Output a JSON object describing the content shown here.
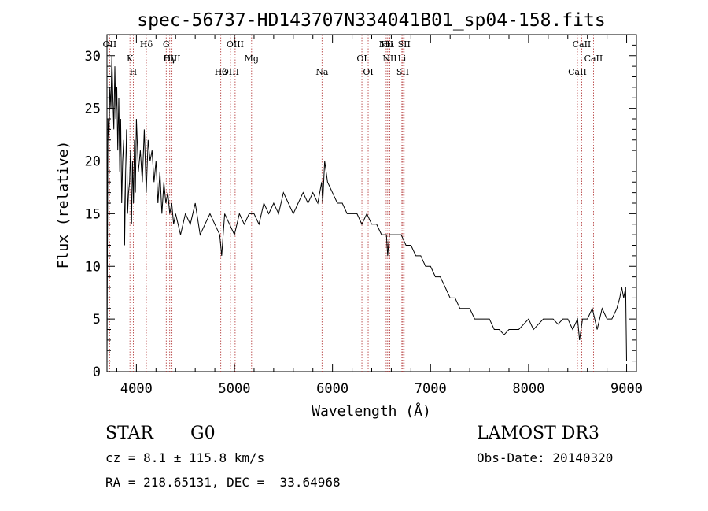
{
  "chart_data": {
    "type": "line",
    "title": "spec-56737-HD143707N334041B01_sp04-158.fits",
    "xlabel": "Wavelength (Å)",
    "ylabel": "Flux (relative)",
    "xlim": [
      3700,
      9100
    ],
    "ylim": [
      0,
      32
    ],
    "xticks": [
      4000,
      5000,
      6000,
      7000,
      8000,
      9000
    ],
    "yticks": [
      0,
      5,
      10,
      15,
      20,
      25,
      30
    ],
    "grid": false,
    "series": [
      {
        "x": [
          3700,
          3710,
          3720,
          3730,
          3740,
          3750,
          3760,
          3770,
          3780,
          3790,
          3800,
          3810,
          3820,
          3830,
          3840,
          3850,
          3860,
          3870,
          3880,
          3890,
          3900,
          3910,
          3920,
          3930,
          3940,
          3950,
          3960,
          3970,
          3980,
          3990,
          4000,
          4020,
          4040,
          4060,
          4080,
          4100,
          4120,
          4140,
          4160,
          4180,
          4200,
          4220,
          4240,
          4260,
          4280,
          4300,
          4320,
          4340,
          4360,
          4380,
          4400,
          4450,
          4500,
          4550,
          4600,
          4650,
          4700,
          4750,
          4800,
          4850,
          4870,
          4900,
          4950,
          5000,
          5050,
          5100,
          5150,
          5200,
          5250,
          5300,
          5350,
          5400,
          5450,
          5500,
          5550,
          5600,
          5650,
          5700,
          5750,
          5800,
          5850,
          5890,
          5900,
          5920,
          5950,
          6000,
          6050,
          6100,
          6150,
          6200,
          6250,
          6300,
          6350,
          6400,
          6450,
          6500,
          6550,
          6563,
          6580,
          6600,
          6650,
          6700,
          6750,
          6800,
          6850,
          6900,
          6950,
          7000,
          7050,
          7100,
          7150,
          7200,
          7250,
          7300,
          7350,
          7400,
          7450,
          7500,
          7550,
          7600,
          7650,
          7700,
          7750,
          7800,
          7850,
          7900,
          7950,
          8000,
          8050,
          8100,
          8150,
          8200,
          8250,
          8300,
          8350,
          8400,
          8450,
          8500,
          8520,
          8550,
          8600,
          8650,
          8700,
          8750,
          8800,
          8850,
          8900,
          8930,
          8950,
          8970,
          8990,
          9000
        ],
        "y": [
          1,
          24,
          22,
          27,
          25,
          30,
          26,
          23,
          29,
          24,
          27,
          21,
          26,
          19,
          24,
          16,
          20,
          22,
          12,
          19,
          23,
          15,
          17,
          18,
          21,
          14,
          20,
          16,
          22,
          17,
          24,
          19,
          21,
          18,
          23,
          17,
          22,
          20,
          21,
          18,
          20,
          16,
          19,
          15,
          18,
          16,
          17,
          15,
          16,
          14,
          15,
          13,
          15,
          14,
          16,
          13,
          14,
          15,
          14,
          13,
          11,
          15,
          14,
          13,
          15,
          14,
          15,
          15,
          14,
          16,
          15,
          16,
          15,
          17,
          16,
          15,
          16,
          17,
          16,
          17,
          16,
          18,
          16,
          20,
          18,
          17,
          16,
          16,
          15,
          15,
          15,
          14,
          15,
          14,
          14,
          13,
          13,
          11,
          13,
          13,
          13,
          13,
          12,
          12,
          11,
          11,
          10,
          10,
          9,
          9,
          8,
          7,
          7,
          6,
          6,
          6,
          5,
          5,
          5,
          5,
          4,
          4,
          3.5,
          4,
          4,
          4,
          4.5,
          5,
          4,
          4.5,
          5,
          5,
          5,
          4.5,
          5,
          5,
          4,
          5,
          3,
          5,
          5,
          6,
          4,
          6,
          5,
          5,
          6,
          7,
          8,
          7,
          8,
          1
        ]
      }
    ],
    "annotations": [
      {
        "label": "Hδ",
        "x": 4101
      },
      {
        "label": "Hγ",
        "x": 4340
      },
      {
        "label": "Hβ",
        "x": 4861
      },
      {
        "label": "Hα",
        "x": 6563
      },
      {
        "label": "K",
        "x": 3934
      },
      {
        "label": "H",
        "x": 3968
      },
      {
        "label": "G",
        "x": 4304
      },
      {
        "label": "Mg",
        "x": 5175
      },
      {
        "label": "Na",
        "x": 5893
      },
      {
        "label": "OII",
        "x": 3727
      },
      {
        "label": "OIII",
        "x": 4363
      },
      {
        "label": "OIII",
        "x": 4959
      },
      {
        "label": "OIII",
        "x": 5007
      },
      {
        "label": "OI",
        "x": 6300
      },
      {
        "label": "OI",
        "x": 6364
      },
      {
        "label": "NII",
        "x": 6548
      },
      {
        "label": "NII",
        "x": 6584
      },
      {
        "label": "SII",
        "x": 6717
      },
      {
        "label": "SII",
        "x": 6731
      },
      {
        "label": "Li",
        "x": 6708
      },
      {
        "label": "CaII",
        "x": 8498
      },
      {
        "label": "CaII",
        "x": 8542
      },
      {
        "label": "CaII",
        "x": 8662
      }
    ]
  },
  "info": {
    "object_class": "STAR",
    "subclass": "G0",
    "survey": "LAMOST DR3",
    "redshift": "cz = 8.1 ± 115.8 km/s",
    "obs_date": "Obs-Date: 20140320",
    "coords": "RA = 218.65131, DEC =  33.64968"
  }
}
